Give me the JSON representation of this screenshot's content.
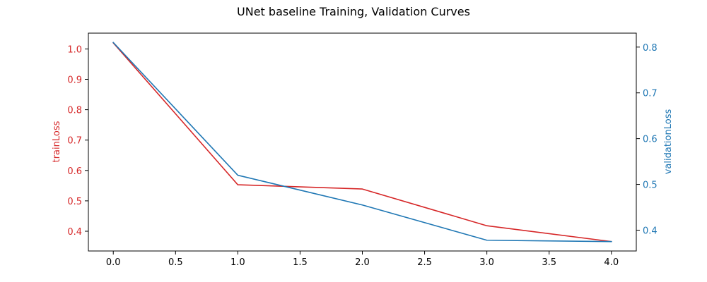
{
  "chart_data": {
    "type": "line",
    "title": "UNet baseline Training, Validation Curves",
    "xlabel": "",
    "x": [
      0,
      1,
      2,
      3,
      4
    ],
    "xlim": [
      -0.2,
      4.2
    ],
    "xticks": [
      "0.0",
      "0.5",
      "1.0",
      "1.5",
      "2.0",
      "2.5",
      "3.0",
      "3.5",
      "4.0"
    ],
    "xtick_values": [
      0,
      0.5,
      1,
      1.5,
      2,
      2.5,
      3,
      3.5,
      4
    ],
    "grid": false,
    "series": [
      {
        "name": "trainLoss",
        "axis": "left",
        "color": "#d62728",
        "values": [
          1.02,
          0.553,
          0.539,
          0.418,
          0.366
        ]
      },
      {
        "name": "validationLoss",
        "axis": "right",
        "color": "#1f77b4",
        "values": [
          0.81,
          0.52,
          0.455,
          0.378,
          0.375
        ]
      }
    ],
    "left_axis": {
      "label": "trainLoss",
      "color": "#d62728",
      "ylim": [
        0.335,
        1.052
      ],
      "ticks": [
        "0.4",
        "0.5",
        "0.6",
        "0.7",
        "0.8",
        "0.9",
        "1.0"
      ],
      "tick_values": [
        0.4,
        0.5,
        0.6,
        0.7,
        0.8,
        0.9,
        1.0
      ]
    },
    "right_axis": {
      "label": "validationLoss",
      "color": "#1f77b4",
      "ylim": [
        0.3545,
        0.8305
      ],
      "ticks": [
        "0.4",
        "0.5",
        "0.6",
        "0.7",
        "0.8"
      ],
      "tick_values": [
        0.4,
        0.5,
        0.6,
        0.7,
        0.8
      ]
    }
  }
}
